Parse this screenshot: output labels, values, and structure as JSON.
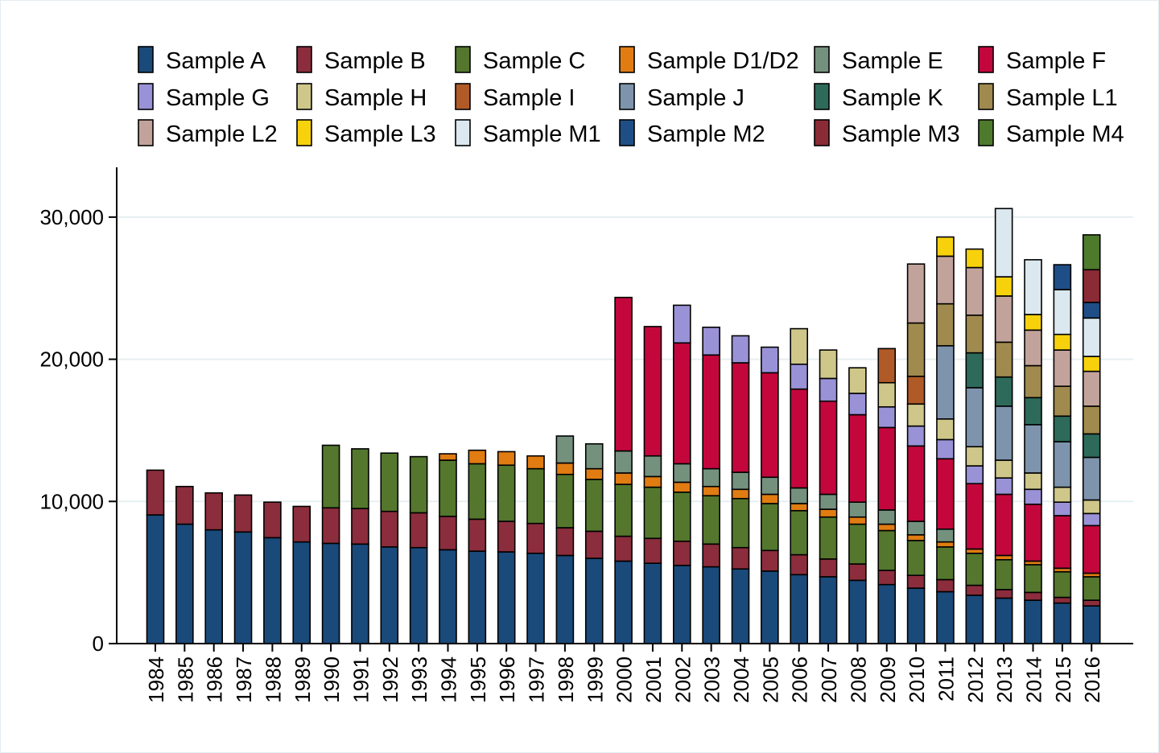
{
  "chart_data": {
    "type": "bar",
    "stacked": true,
    "title": "",
    "xlabel": "",
    "ylabel": "",
    "ylim": [
      0,
      33500
    ],
    "yticks": [
      0,
      10000,
      20000,
      30000
    ],
    "ytick_labels": [
      "0",
      "10,000",
      "20,000",
      "30,000"
    ],
    "grid": true,
    "legend_position": "top",
    "categories": [
      "1984",
      "1985",
      "1986",
      "1987",
      "1988",
      "1989",
      "1990",
      "1991",
      "1992",
      "1993",
      "1994",
      "1995",
      "1996",
      "1997",
      "1998",
      "1999",
      "2000",
      "2001",
      "2002",
      "2003",
      "2004",
      "2005",
      "2006",
      "2007",
      "2008",
      "2009",
      "2010",
      "2011",
      "2012",
      "2013",
      "2014",
      "2015",
      "2016"
    ],
    "series": [
      {
        "name": "Sample A",
        "color": "#1a4a7a",
        "values": [
          9050,
          8400,
          8000,
          7850,
          7450,
          7150,
          7050,
          7000,
          6800,
          6750,
          6600,
          6500,
          6450,
          6350,
          6200,
          6000,
          5800,
          5650,
          5500,
          5400,
          5250,
          5100,
          4850,
          4700,
          4450,
          4150,
          3900,
          3650,
          3400,
          3200,
          3050,
          2850,
          2650
        ]
      },
      {
        "name": "Sample B",
        "color": "#8b2d3c",
        "values": [
          3150,
          2650,
          2600,
          2600,
          2500,
          2500,
          2500,
          2500,
          2500,
          2450,
          2350,
          2250,
          2150,
          2100,
          1950,
          1900,
          1750,
          1750,
          1700,
          1600,
          1500,
          1450,
          1400,
          1250,
          1150,
          1000,
          900,
          850,
          700,
          600,
          550,
          400,
          400
        ]
      },
      {
        "name": "Sample C",
        "color": "#54772d",
        "values": [
          0,
          0,
          0,
          0,
          0,
          0,
          4400,
          4200,
          4100,
          3950,
          3950,
          3900,
          3950,
          3850,
          3750,
          3650,
          3650,
          3600,
          3450,
          3400,
          3450,
          3300,
          3100,
          2950,
          2800,
          2800,
          2450,
          2300,
          2250,
          2100,
          1950,
          1800,
          1650
        ]
      },
      {
        "name": "Sample D1/D2",
        "color": "#e07c12",
        "values": [
          0,
          0,
          0,
          0,
          0,
          0,
          0,
          0,
          0,
          0,
          450,
          950,
          950,
          900,
          800,
          750,
          800,
          750,
          700,
          650,
          650,
          650,
          500,
          550,
          500,
          450,
          400,
          350,
          300,
          300,
          250,
          250,
          250
        ]
      },
      {
        "name": "Sample E",
        "color": "#74917e",
        "values": [
          0,
          0,
          0,
          0,
          0,
          0,
          0,
          0,
          0,
          0,
          0,
          0,
          0,
          0,
          1900,
          1750,
          1550,
          1450,
          1300,
          1250,
          1200,
          1200,
          1100,
          1050,
          1050,
          1000,
          950,
          900,
          0,
          0,
          0,
          0,
          0
        ]
      },
      {
        "name": "Sample F",
        "color": "#c3073d",
        "values": [
          0,
          0,
          0,
          0,
          0,
          0,
          0,
          0,
          0,
          0,
          0,
          0,
          0,
          0,
          0,
          0,
          10800,
          9100,
          8500,
          8000,
          7700,
          7350,
          6950,
          6550,
          6150,
          5800,
          5300,
          4950,
          4600,
          4300,
          4000,
          3700,
          3350
        ]
      },
      {
        "name": "Sample G",
        "color": "#9a92d6",
        "values": [
          0,
          0,
          0,
          0,
          0,
          0,
          0,
          0,
          0,
          0,
          0,
          0,
          0,
          0,
          0,
          0,
          0,
          0,
          2650,
          1950,
          1900,
          1800,
          1750,
          1600,
          1500,
          1450,
          1400,
          1350,
          1250,
          1150,
          1050,
          950,
          850
        ]
      },
      {
        "name": "Sample H",
        "color": "#cfc78a",
        "values": [
          0,
          0,
          0,
          0,
          0,
          0,
          0,
          0,
          0,
          0,
          0,
          0,
          0,
          0,
          0,
          0,
          0,
          0,
          0,
          0,
          0,
          0,
          2500,
          2000,
          1800,
          1700,
          1550,
          1450,
          1350,
          1250,
          1150,
          1050,
          950
        ]
      },
      {
        "name": "Sample I",
        "color": "#b05a28",
        "values": [
          0,
          0,
          0,
          0,
          0,
          0,
          0,
          0,
          0,
          0,
          0,
          0,
          0,
          0,
          0,
          0,
          0,
          0,
          0,
          0,
          0,
          0,
          0,
          0,
          0,
          2400,
          1950,
          0,
          0,
          0,
          0,
          0,
          0
        ]
      },
      {
        "name": "Sample J",
        "color": "#7e94ad",
        "values": [
          0,
          0,
          0,
          0,
          0,
          0,
          0,
          0,
          0,
          0,
          0,
          0,
          0,
          0,
          0,
          0,
          0,
          0,
          0,
          0,
          0,
          0,
          0,
          0,
          0,
          0,
          0,
          5150,
          4150,
          3800,
          3400,
          3200,
          3000
        ]
      },
      {
        "name": "Sample K",
        "color": "#2d6a5a",
        "values": [
          0,
          0,
          0,
          0,
          0,
          0,
          0,
          0,
          0,
          0,
          0,
          0,
          0,
          0,
          0,
          0,
          0,
          0,
          0,
          0,
          0,
          0,
          0,
          0,
          0,
          0,
          0,
          0,
          2450,
          2050,
          1900,
          1800,
          1650
        ]
      },
      {
        "name": "Sample L1",
        "color": "#a08a4e",
        "values": [
          0,
          0,
          0,
          0,
          0,
          0,
          0,
          0,
          0,
          0,
          0,
          0,
          0,
          0,
          0,
          0,
          0,
          0,
          0,
          0,
          0,
          0,
          0,
          0,
          0,
          0,
          3750,
          2950,
          2650,
          2450,
          2250,
          2100,
          1950
        ]
      },
      {
        "name": "Sample L2",
        "color": "#c2a39b",
        "values": [
          0,
          0,
          0,
          0,
          0,
          0,
          0,
          0,
          0,
          0,
          0,
          0,
          0,
          0,
          0,
          0,
          0,
          0,
          0,
          0,
          0,
          0,
          0,
          0,
          0,
          0,
          4150,
          3350,
          3350,
          3250,
          2500,
          2550,
          2450
        ]
      },
      {
        "name": "Sample L3",
        "color": "#f7d20c",
        "values": [
          0,
          0,
          0,
          0,
          0,
          0,
          0,
          0,
          0,
          0,
          0,
          0,
          0,
          0,
          0,
          0,
          0,
          0,
          0,
          0,
          0,
          0,
          0,
          0,
          0,
          0,
          0,
          1350,
          1300,
          1350,
          1100,
          1100,
          1050
        ]
      },
      {
        "name": "Sample M1",
        "color": "#dce8f0",
        "values": [
          0,
          0,
          0,
          0,
          0,
          0,
          0,
          0,
          0,
          0,
          0,
          0,
          0,
          0,
          0,
          0,
          0,
          0,
          0,
          0,
          0,
          0,
          0,
          0,
          0,
          0,
          0,
          0,
          0,
          4800,
          3850,
          3150,
          2700
        ]
      },
      {
        "name": "Sample M2",
        "color": "#1f4e86",
        "values": [
          0,
          0,
          0,
          0,
          0,
          0,
          0,
          0,
          0,
          0,
          0,
          0,
          0,
          0,
          0,
          0,
          0,
          0,
          0,
          0,
          0,
          0,
          0,
          0,
          0,
          0,
          0,
          0,
          0,
          0,
          0,
          1750,
          1100
        ]
      },
      {
        "name": "Sample M3",
        "color": "#8b2b35",
        "values": [
          0,
          0,
          0,
          0,
          0,
          0,
          0,
          0,
          0,
          0,
          0,
          0,
          0,
          0,
          0,
          0,
          0,
          0,
          0,
          0,
          0,
          0,
          0,
          0,
          0,
          0,
          0,
          0,
          0,
          0,
          0,
          0,
          2300
        ]
      },
      {
        "name": "Sample M4",
        "color": "#4e7a2c",
        "values": [
          0,
          0,
          0,
          0,
          0,
          0,
          0,
          0,
          0,
          0,
          0,
          0,
          0,
          0,
          0,
          0,
          0,
          0,
          0,
          0,
          0,
          0,
          0,
          0,
          0,
          0,
          0,
          0,
          0,
          0,
          0,
          0,
          2450
        ]
      }
    ]
  }
}
